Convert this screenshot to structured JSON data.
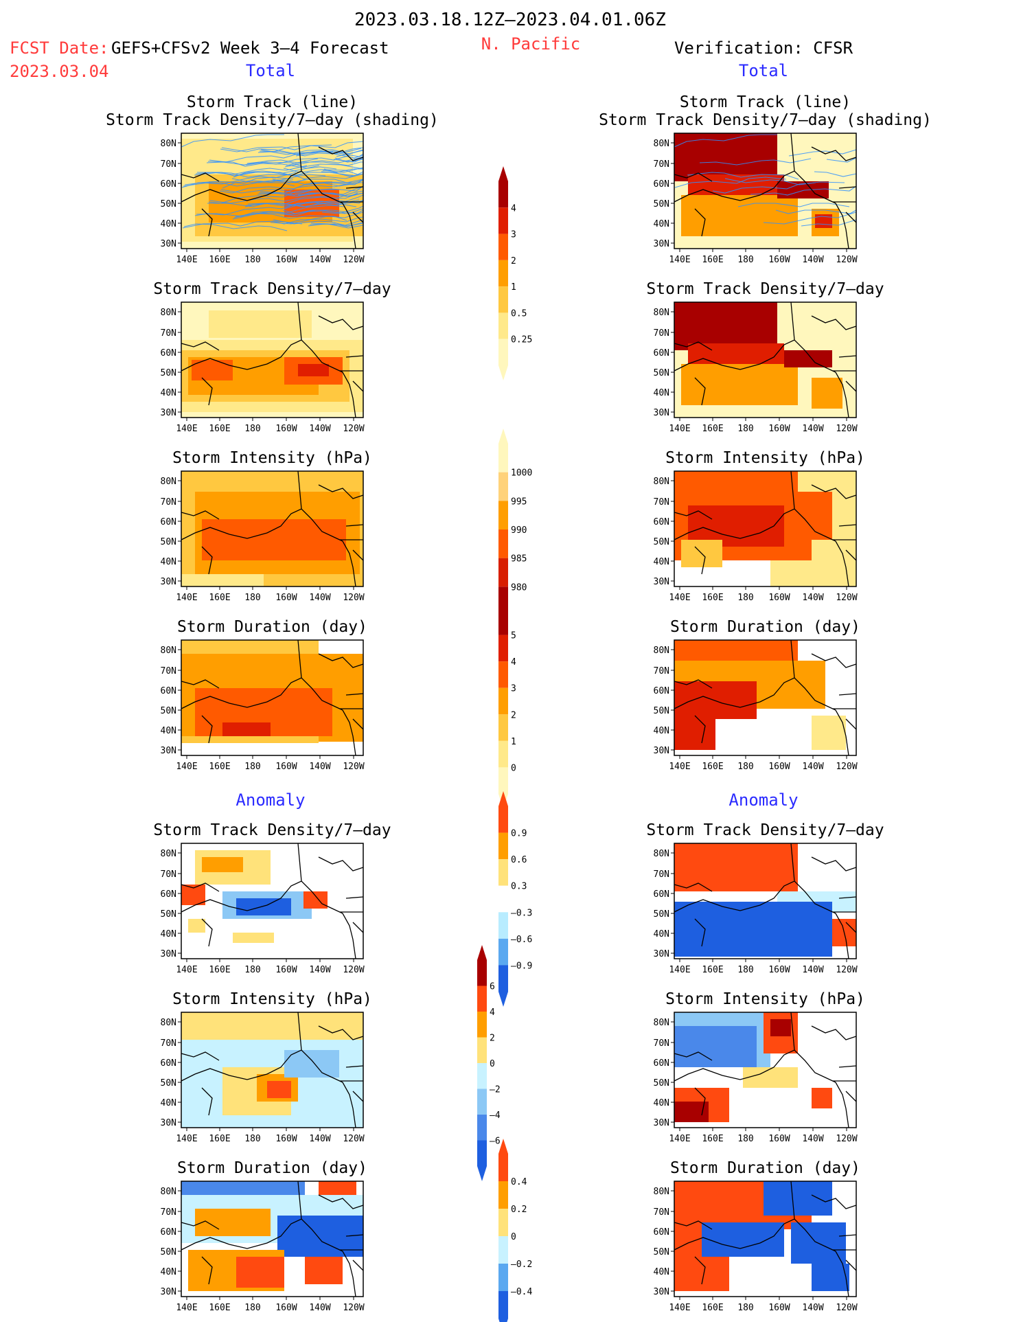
{
  "header": {
    "period": "2023.03.18.12Z–2023.04.01.06Z",
    "fcst_label": "FCST Date:",
    "fcst_date": "2023.03.04",
    "model": "GEFS+CFSv2 Week 3–4 Forecast",
    "region": "N. Pacific",
    "verification": "Verification: CFSR",
    "left_total": "Total",
    "right_total": "Total",
    "left_anomaly": "Anomaly",
    "right_anomaly": "Anomaly"
  },
  "colors": {
    "title_red": "#ff3a3a",
    "label_blue": "#2a2aff"
  },
  "axes": {
    "lat_ticks": [
      "80N",
      "70N",
      "60N",
      "50N",
      "40N",
      "30N"
    ],
    "lon_ticks": [
      "140E",
      "160E",
      "180",
      "160W",
      "140W",
      "120W"
    ]
  },
  "chart_data": [
    {
      "type": "heatmap",
      "panel": "forecast-total",
      "title": [
        "Storm Track (line)",
        "Storm Track Density/7–day (shading)"
      ],
      "grid": false
    },
    {
      "type": "heatmap",
      "panel": "forecast-total",
      "title": [
        "Storm Track Density/7–day"
      ],
      "grid": false
    },
    {
      "type": "heatmap",
      "panel": "forecast-total",
      "title": [
        "Storm Intensity (hPa)"
      ],
      "grid": false
    },
    {
      "type": "heatmap",
      "panel": "forecast-total",
      "title": [
        "Storm Duration (day)"
      ],
      "grid": false
    },
    {
      "type": "heatmap",
      "panel": "forecast-anomaly",
      "title": [
        "Storm Track Density/7–day"
      ],
      "grid": false
    },
    {
      "type": "heatmap",
      "panel": "forecast-anomaly",
      "title": [
        "Storm Intensity (hPa)"
      ],
      "grid": false
    },
    {
      "type": "heatmap",
      "panel": "forecast-anomaly",
      "title": [
        "Storm Duration (day)"
      ],
      "grid": false
    },
    {
      "type": "heatmap",
      "panel": "verification-total",
      "title": [
        "Storm Track (line)",
        "Storm Track Density/7–day (shading)"
      ],
      "grid": false
    },
    {
      "type": "heatmap",
      "panel": "verification-total",
      "title": [
        "Storm Track Density/7–day"
      ],
      "grid": false
    },
    {
      "type": "heatmap",
      "panel": "verification-total",
      "title": [
        "Storm Intensity (hPa)"
      ],
      "grid": false
    },
    {
      "type": "heatmap",
      "panel": "verification-total",
      "title": [
        "Storm Duration (day)"
      ],
      "grid": false
    },
    {
      "type": "heatmap",
      "panel": "verification-anomaly",
      "title": [
        "Storm Track Density/7–day"
      ],
      "grid": false
    },
    {
      "type": "heatmap",
      "panel": "verification-anomaly",
      "title": [
        "Storm Intensity (hPa)"
      ],
      "grid": false
    },
    {
      "type": "heatmap",
      "panel": "verification-anomaly",
      "title": [
        "Storm Duration (day)"
      ],
      "grid": false
    }
  ],
  "colorbars": [
    {
      "name": "density",
      "labels": [
        "4",
        "3",
        "2",
        "1",
        "0.5",
        "0.25"
      ],
      "colors": [
        "#a80000",
        "#e01e00",
        "#ff5a00",
        "#ff9e00",
        "#ffc840",
        "#ffe98a",
        "#fff7bd"
      ]
    },
    {
      "name": "intensity",
      "labels": [
        "1000",
        "995",
        "990",
        "985",
        "980"
      ],
      "colors": [
        "#fff7bd",
        "#ffd27a",
        "#ff9e00",
        "#ff5a00",
        "#d81e00",
        "#a80000"
      ]
    },
    {
      "name": "duration",
      "labels": [
        "5",
        "4",
        "3",
        "2",
        "1",
        "0"
      ],
      "colors": [
        "#a80000",
        "#e01e00",
        "#ff5a00",
        "#ff9e00",
        "#ffc840",
        "#ffe98a",
        "#fff7bd"
      ]
    },
    {
      "name": "density-anomaly",
      "labels": [
        "0.9",
        "0.6",
        "0.3",
        "–0.3",
        "–0.6",
        "–0.9"
      ],
      "colors": [
        "#ff4a10",
        "#ff9e00",
        "#ffe27a",
        "#ffffff",
        "#b8ecff",
        "#5aa8f0",
        "#1e5fe0"
      ]
    },
    {
      "name": "intensity-anomaly",
      "labels": [
        "6",
        "4",
        "2",
        "0",
        "–2",
        "–4",
        "–6"
      ],
      "colors": [
        "#a80000",
        "#ff4a10",
        "#ff9e00",
        "#ffe27a",
        "#c8f2ff",
        "#8cc8f5",
        "#4a88ea",
        "#1e5fe0"
      ]
    },
    {
      "name": "duration-anomaly",
      "labels": [
        "0.4",
        "0.2",
        "0",
        "–0.2",
        "–0.4"
      ],
      "colors": [
        "#ff4a10",
        "#ff9e00",
        "#ffe27a",
        "#c8f2ff",
        "#5aa8f0",
        "#1e5fe0"
      ]
    }
  ]
}
